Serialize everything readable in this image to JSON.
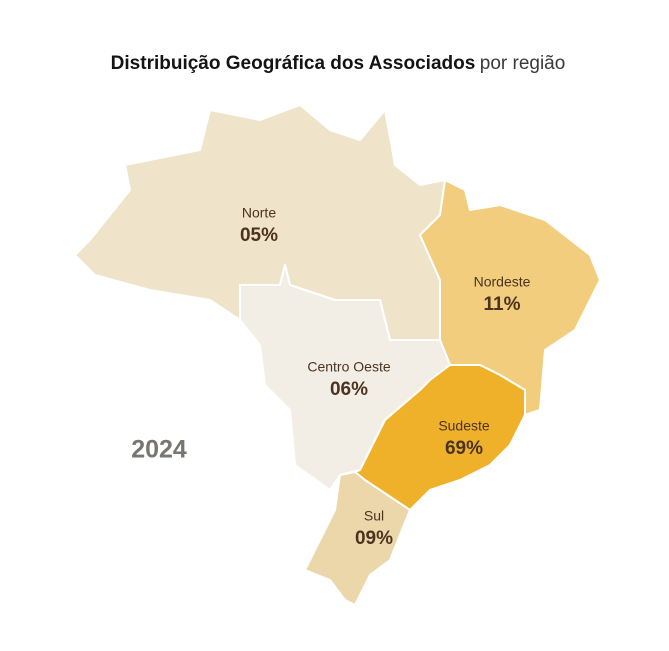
{
  "chart_data": {
    "type": "map",
    "title": "Distribuição Geográfica dos Associados",
    "subtitle": "por região",
    "year_label": "2024",
    "categories": [
      "Norte",
      "Nordeste",
      "Centro Oeste",
      "Sudeste",
      "Sul"
    ],
    "values": [
      5,
      11,
      6,
      69,
      9
    ],
    "value_labels": [
      "05%",
      "11%",
      "06%",
      "69%",
      "09%"
    ],
    "colors": [
      "#efe3c9",
      "#f1cd7d",
      "#f3eee5",
      "#f0b12a",
      "#ecd7ab"
    ]
  }
}
